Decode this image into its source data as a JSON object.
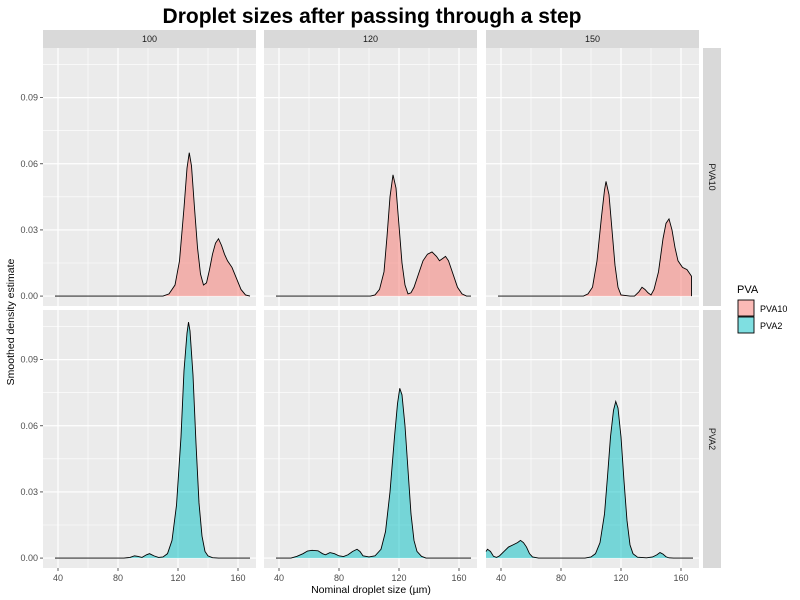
{
  "chart_data": {
    "type": "area",
    "title": "Droplet sizes after passing through a step",
    "xlabel": "Nominal droplet size (µm)",
    "ylabel": "Smoothed density estimate",
    "xlim": [
      30,
      172
    ],
    "ylim": [
      -0.0045,
      0.1125
    ],
    "x_ticks": [
      40,
      80,
      120,
      160
    ],
    "x_tick_labels": [
      "40",
      "80",
      "120",
      "160"
    ],
    "y_ticks": [
      0,
      0.03,
      0.06,
      0.09
    ],
    "y_tick_labels": [
      "0.00",
      "0.03",
      "0.06",
      "0.09"
    ],
    "grid": true,
    "columns": [
      "100",
      "120",
      "150"
    ],
    "rows": [
      "PVA10",
      "PVA2"
    ],
    "legend": {
      "title": "PVA",
      "position": "right",
      "entries": [
        {
          "label": "PVA10",
          "color": "#F8766D"
        },
        {
          "label": "PVA2",
          "color": "#00BFC4"
        }
      ]
    },
    "panels": [
      {
        "col": "100",
        "row": "PVA10",
        "color": "#F8766D",
        "range": [
          38,
          168
        ],
        "points": [
          [
            38,
            0
          ],
          [
            110,
            0
          ],
          [
            114,
            0.001
          ],
          [
            118,
            0.005
          ],
          [
            121,
            0.016
          ],
          [
            124,
            0.04
          ],
          [
            126,
            0.058
          ],
          [
            127.5,
            0.065
          ],
          [
            129,
            0.059
          ],
          [
            131,
            0.04
          ],
          [
            133,
            0.022
          ],
          [
            135,
            0.01
          ],
          [
            137,
            0.005
          ],
          [
            139,
            0.006
          ],
          [
            141,
            0.012
          ],
          [
            143,
            0.019
          ],
          [
            145,
            0.024
          ],
          [
            147,
            0.026
          ],
          [
            149,
            0.023
          ],
          [
            151,
            0.019
          ],
          [
            153,
            0.016
          ],
          [
            156,
            0.013
          ],
          [
            159,
            0.008
          ],
          [
            162,
            0.003
          ],
          [
            165,
            0.0005
          ],
          [
            168,
            0
          ]
        ]
      },
      {
        "col": "120",
        "row": "PVA10",
        "color": "#F8766D",
        "range": [
          38,
          168
        ],
        "points": [
          [
            38,
            0
          ],
          [
            101,
            0
          ],
          [
            104,
            0.0005
          ],
          [
            107,
            0.003
          ],
          [
            110,
            0.011
          ],
          [
            112,
            0.027
          ],
          [
            114,
            0.045
          ],
          [
            116,
            0.055
          ],
          [
            118,
            0.049
          ],
          [
            120,
            0.032
          ],
          [
            122,
            0.015
          ],
          [
            124,
            0.005
          ],
          [
            126,
            0.001
          ],
          [
            128,
            0.0015
          ],
          [
            130,
            0.004
          ],
          [
            133,
            0.01
          ],
          [
            136,
            0.016
          ],
          [
            139,
            0.019
          ],
          [
            142,
            0.02
          ],
          [
            145,
            0.018
          ],
          [
            147,
            0.016
          ],
          [
            149,
            0.017
          ],
          [
            151,
            0.018
          ],
          [
            153,
            0.016
          ],
          [
            156,
            0.01
          ],
          [
            159,
            0.004
          ],
          [
            162,
            0.001
          ],
          [
            165,
            0
          ],
          [
            168,
            0
          ]
        ]
      },
      {
        "col": "150",
        "row": "PVA10",
        "color": "#F8766D",
        "range": [
          38,
          168
        ],
        "points": [
          [
            38,
            0
          ],
          [
            95,
            0
          ],
          [
            98,
            0.001
          ],
          [
            101,
            0.004
          ],
          [
            104,
            0.016
          ],
          [
            107,
            0.036
          ],
          [
            109,
            0.048
          ],
          [
            110,
            0.052
          ],
          [
            112,
            0.046
          ],
          [
            114,
            0.03
          ],
          [
            116,
            0.014
          ],
          [
            118,
            0.004
          ],
          [
            120,
            0.0005
          ],
          [
            126,
            0
          ],
          [
            129,
            0
          ],
          [
            132,
            0.002
          ],
          [
            134,
            0.004
          ],
          [
            136,
            0.003
          ],
          [
            138,
            0.0015
          ],
          [
            140,
            0.0005
          ],
          [
            142,
            0.003
          ],
          [
            145,
            0.011
          ],
          [
            148,
            0.026
          ],
          [
            150,
            0.033
          ],
          [
            152,
            0.035
          ],
          [
            154,
            0.03
          ],
          [
            156,
            0.022
          ],
          [
            158,
            0.016
          ],
          [
            161,
            0.013
          ],
          [
            164,
            0.012
          ],
          [
            166,
            0.01
          ],
          [
            167,
            0.009
          ],
          [
            167,
            0
          ]
        ]
      },
      {
        "col": "100",
        "row": "PVA2",
        "color": "#00BFC4",
        "range": [
          38,
          168
        ],
        "points": [
          [
            38,
            0
          ],
          [
            84,
            0
          ],
          [
            88,
            0.0003
          ],
          [
            91,
            0.001
          ],
          [
            93,
            0.0008
          ],
          [
            96,
            0.0003
          ],
          [
            99,
            0.0015
          ],
          [
            101,
            0.002
          ],
          [
            104,
            0.001
          ],
          [
            107,
            0.0003
          ],
          [
            110,
            0.0005
          ],
          [
            113,
            0.002
          ],
          [
            116,
            0.008
          ],
          [
            119,
            0.024
          ],
          [
            122,
            0.055
          ],
          [
            124,
            0.085
          ],
          [
            126,
            0.102
          ],
          [
            127,
            0.107
          ],
          [
            128,
            0.103
          ],
          [
            130,
            0.083
          ],
          [
            132,
            0.052
          ],
          [
            134,
            0.025
          ],
          [
            136,
            0.01
          ],
          [
            138,
            0.003
          ],
          [
            140,
            0.001
          ],
          [
            143,
            0.0002
          ],
          [
            147,
            0
          ],
          [
            168,
            0
          ]
        ]
      },
      {
        "col": "120",
        "row": "PVA2",
        "color": "#00BFC4",
        "range": [
          38,
          168
        ],
        "points": [
          [
            38,
            0
          ],
          [
            48,
            0
          ],
          [
            52,
            0.0008
          ],
          [
            56,
            0.002
          ],
          [
            59,
            0.0032
          ],
          [
            62,
            0.0035
          ],
          [
            66,
            0.0033
          ],
          [
            69,
            0.002
          ],
          [
            71,
            0.0015
          ],
          [
            74,
            0.0025
          ],
          [
            77,
            0.002
          ],
          [
            80,
            0.001
          ],
          [
            83,
            0.0007
          ],
          [
            86,
            0.0015
          ],
          [
            89,
            0.003
          ],
          [
            92,
            0.004
          ],
          [
            94,
            0.003
          ],
          [
            96,
            0.001
          ],
          [
            100,
            0.0005
          ],
          [
            104,
            0.001
          ],
          [
            108,
            0.004
          ],
          [
            111,
            0.012
          ],
          [
            114,
            0.03
          ],
          [
            117,
            0.055
          ],
          [
            119,
            0.07
          ],
          [
            120.5,
            0.077
          ],
          [
            122,
            0.074
          ],
          [
            124,
            0.06
          ],
          [
            126,
            0.04
          ],
          [
            128,
            0.02
          ],
          [
            130,
            0.008
          ],
          [
            132,
            0.003
          ],
          [
            135,
            0.0008
          ],
          [
            138,
            0
          ],
          [
            168,
            0
          ]
        ]
      },
      {
        "col": "150",
        "row": "PVA2",
        "color": "#00BFC4",
        "range": [
          30,
          168
        ],
        "points": [
          [
            30,
            0.003
          ],
          [
            31,
            0.004
          ],
          [
            33,
            0.003
          ],
          [
            35,
            0.0008
          ],
          [
            37,
            0.0003
          ],
          [
            39,
            0.001
          ],
          [
            42,
            0.003
          ],
          [
            45,
            0.005
          ],
          [
            48,
            0.006
          ],
          [
            51,
            0.007
          ],
          [
            53,
            0.008
          ],
          [
            55,
            0.007
          ],
          [
            57,
            0.005
          ],
          [
            59,
            0.002
          ],
          [
            61,
            0.0005
          ],
          [
            65,
            0
          ],
          [
            96,
            0
          ],
          [
            100,
            0.0005
          ],
          [
            103,
            0.002
          ],
          [
            106,
            0.007
          ],
          [
            109,
            0.02
          ],
          [
            111,
            0.037
          ],
          [
            113,
            0.055
          ],
          [
            115,
            0.067
          ],
          [
            116.5,
            0.071
          ],
          [
            118,
            0.068
          ],
          [
            120,
            0.055
          ],
          [
            122,
            0.035
          ],
          [
            124,
            0.017
          ],
          [
            126,
            0.006
          ],
          [
            128,
            0.002
          ],
          [
            131,
            0.0004
          ],
          [
            137,
            0.0001
          ],
          [
            141,
            0.0005
          ],
          [
            144,
            0.0015
          ],
          [
            146,
            0.0025
          ],
          [
            148,
            0.0018
          ],
          [
            150,
            0.0006
          ],
          [
            152,
            0.0001
          ],
          [
            155,
            0
          ],
          [
            168,
            0
          ]
        ]
      }
    ]
  }
}
